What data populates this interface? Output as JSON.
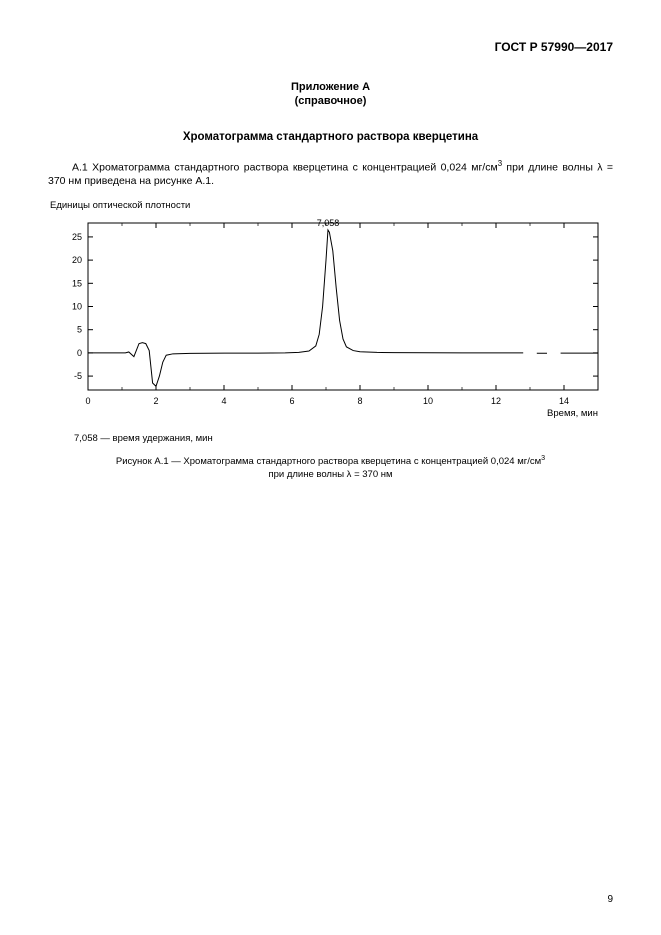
{
  "doc_header": "ГОСТ Р 57990—2017",
  "appendix_label": "Приложение А",
  "appendix_sub": "(справочное)",
  "title": "Хроматограмма стандартного раствора кверцетина",
  "para_prefix": "А.1 ",
  "para_body1": "Хроматограмма стандартного раствора кверцетина с концентрацией 0,024 мг/см",
  "para_sup1": "3",
  "para_body2": " при длине волны λ = 370 нм приведена на рисунке А.1.",
  "y_axis_title": "Единицы оптической плотности",
  "legend": "7,058 — время удержания, мин",
  "caption_line1_a": "Рисунок А.1 — Хроматограмма стандартного раствора кверцетина с концентрацией 0,024 мг/см",
  "caption_sup": "3",
  "caption_line2": "при длине волны λ = 370 нм",
  "page_number": "9",
  "chart": {
    "type": "line",
    "xlim": [
      0,
      15
    ],
    "ylim": [
      -8,
      28
    ],
    "xticks": [
      0,
      2,
      4,
      6,
      8,
      10,
      12,
      14
    ],
    "yticks": [
      -5,
      0,
      5,
      10,
      15,
      20,
      25
    ],
    "xlabel": "Время, мин",
    "line_color": "#000000",
    "line_width": 1,
    "border_color": "#000000",
    "border_width": 1,
    "tick_fontsize": 9,
    "axis_fontsize": 9.5,
    "peak_label": "7,058",
    "peak_label_fontsize": 9,
    "data": [
      [
        0.0,
        0.0
      ],
      [
        0.5,
        0.0
      ],
      [
        0.9,
        0.0
      ],
      [
        1.1,
        0.0
      ],
      [
        1.2,
        0.2
      ],
      [
        1.35,
        -0.8
      ],
      [
        1.5,
        2.0
      ],
      [
        1.6,
        2.2
      ],
      [
        1.7,
        2.0
      ],
      [
        1.8,
        0.5
      ],
      [
        1.85,
        -3.0
      ],
      [
        1.9,
        -6.5
      ],
      [
        2.0,
        -7.2
      ],
      [
        2.1,
        -5.0
      ],
      [
        2.2,
        -2.0
      ],
      [
        2.3,
        -0.5
      ],
      [
        2.5,
        -0.2
      ],
      [
        3.0,
        -0.1
      ],
      [
        4.0,
        -0.05
      ],
      [
        5.0,
        -0.05
      ],
      [
        5.8,
        0.0
      ],
      [
        6.2,
        0.1
      ],
      [
        6.5,
        0.4
      ],
      [
        6.7,
        1.5
      ],
      [
        6.8,
        4.0
      ],
      [
        6.9,
        10.0
      ],
      [
        7.0,
        20.0
      ],
      [
        7.058,
        26.5
      ],
      [
        7.1,
        26.0
      ],
      [
        7.2,
        22.0
      ],
      [
        7.3,
        14.0
      ],
      [
        7.4,
        7.0
      ],
      [
        7.5,
        3.0
      ],
      [
        7.6,
        1.3
      ],
      [
        7.8,
        0.5
      ],
      [
        8.0,
        0.25
      ],
      [
        8.5,
        0.1
      ],
      [
        9.0,
        0.05
      ],
      [
        10.0,
        0.02
      ],
      [
        11.0,
        0.0
      ],
      [
        12.0,
        0.0
      ],
      [
        12.8,
        0.0
      ],
      [
        13.2,
        -0.07
      ],
      [
        13.5,
        -0.07
      ],
      [
        13.9,
        -0.05
      ],
      [
        14.5,
        -0.05
      ],
      [
        15.0,
        -0.05
      ]
    ],
    "gaps_after_x": [
      12.8,
      13.5
    ]
  }
}
